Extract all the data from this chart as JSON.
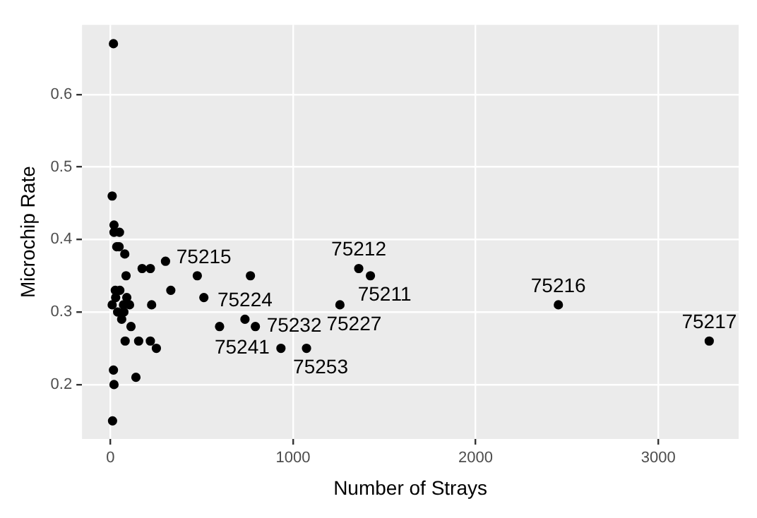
{
  "chart_data": {
    "type": "scatter",
    "xlabel": "Number of Strays",
    "ylabel": "Microchip Rate",
    "x": [
      17,
      10,
      20,
      20,
      50,
      35,
      48,
      79,
      86,
      27,
      52,
      29,
      90,
      10,
      72,
      105,
      40,
      74,
      62,
      113,
      81,
      155,
      219,
      252,
      140,
      17,
      20,
      12,
      174,
      219,
      302,
      331,
      226,
      476,
      512,
      767,
      737,
      794,
      598,
      1360,
      1424,
      2453,
      3279,
      1257,
      1074,
      934
    ],
    "values": [
      0.67,
      0.46,
      0.42,
      0.41,
      0.41,
      0.39,
      0.39,
      0.38,
      0.35,
      0.33,
      0.33,
      0.32,
      0.32,
      0.31,
      0.31,
      0.31,
      0.3,
      0.3,
      0.29,
      0.28,
      0.26,
      0.26,
      0.26,
      0.25,
      0.21,
      0.22,
      0.2,
      0.15,
      0.36,
      0.36,
      0.37,
      0.33,
      0.31,
      0.35,
      0.32,
      0.35,
      0.29,
      0.28,
      0.28,
      0.36,
      0.35,
      0.31,
      0.26,
      0.31,
      0.25,
      0.25
    ],
    "color": "#000000",
    "marker": "circle",
    "xlim": [
      -155,
      3440
    ],
    "ylim": [
      0.125,
      0.696
    ],
    "xticks": [
      0,
      1000,
      2000,
      3000
    ],
    "yticks": [
      0.2,
      0.3,
      0.4,
      0.5,
      0.6
    ],
    "grid": true,
    "annotations": [
      {
        "text": "75212",
        "x": 1360,
        "y": 0.36
      },
      {
        "text": "75211",
        "x": 1424,
        "y": 0.35
      },
      {
        "text": "75216",
        "x": 2453,
        "y": 0.31
      },
      {
        "text": "75217",
        "x": 3279,
        "y": 0.26
      },
      {
        "text": "75227",
        "x": 1257,
        "y": 0.31
      },
      {
        "text": "75253",
        "x": 1074,
        "y": 0.25
      },
      {
        "text": "75241",
        "x": 934,
        "y": 0.25
      },
      {
        "text": "75232",
        "x": 794,
        "y": 0.28
      },
      {
        "text": "75224",
        "x": 737,
        "y": 0.29
      },
      {
        "text": "75215",
        "x": 512,
        "y": 0.32
      }
    ]
  }
}
